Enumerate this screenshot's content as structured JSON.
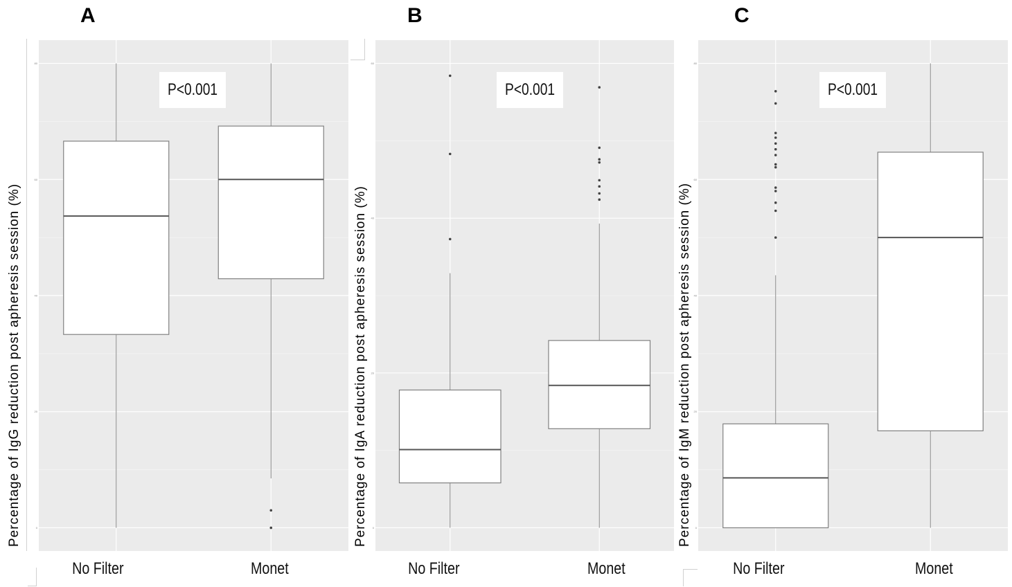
{
  "panels": [
    {
      "letter": "A",
      "ylabel": "Percentage of IgG reduction post apheresis session (%)",
      "pvalue": "P<0.001"
    },
    {
      "letter": "B",
      "ylabel": "Percentage of IgA reduction post apheresis session (%)",
      "pvalue": "P<0.001"
    },
    {
      "letter": "C",
      "ylabel": "Percentage of IgM reduction post apheresis session (%)",
      "pvalue": "P<0.001"
    }
  ],
  "chart_data": [
    {
      "type": "box",
      "title": "A",
      "ylabel": "Percentage of IgG reduction post apheresis session (%)",
      "categories": [
        "No Filter",
        "Monet"
      ],
      "ylim": [
        -4,
        84
      ],
      "y_ticks": [
        0,
        20,
        40,
        60,
        80
      ],
      "grid": true,
      "annotation": "P<0.001",
      "boxes": [
        {
          "category": "No Filter",
          "min": 0,
          "q1": 33.3,
          "median": 53.7,
          "q3": 66.6,
          "max": 80,
          "outliers": []
        },
        {
          "category": "Monet",
          "min": 8.5,
          "q1": 42.9,
          "median": 60.0,
          "q3": 69.2,
          "max": 80,
          "outliers": [
            3.0,
            0.0
          ]
        }
      ]
    },
    {
      "type": "box",
      "title": "B",
      "ylabel": "Percentage of IgA reduction post apheresis session (%)",
      "categories": [
        "No Filter",
        "Monet"
      ],
      "ylim": [
        -3,
        63
      ],
      "y_ticks": [
        0,
        20,
        40,
        60
      ],
      "grid": true,
      "annotation": "P<0.001",
      "boxes": [
        {
          "category": "No Filter",
          "min": 0,
          "q1": 5.8,
          "median": 10.1,
          "q3": 17.8,
          "max": 32.9,
          "outliers": [
            37.3,
            48.3,
            58.4
          ]
        },
        {
          "category": "Monet",
          "min": 0,
          "q1": 12.8,
          "median": 18.4,
          "q3": 24.2,
          "max": 39.3,
          "outliers": [
            42.4,
            43.2,
            44.1,
            44.9,
            47.2,
            47.6,
            49.1,
            56.9
          ]
        }
      ]
    },
    {
      "type": "box",
      "title": "C",
      "ylabel": "Percentage of IgM reduction post apheresis session (%)",
      "categories": [
        "No Filter",
        "Monet"
      ],
      "ylim": [
        -4,
        84
      ],
      "y_ticks": [
        0,
        20,
        40,
        60,
        80
      ],
      "grid": true,
      "annotation": "P<0.001",
      "boxes": [
        {
          "category": "No Filter",
          "min": 0,
          "q1": 0,
          "median": 8.6,
          "q3": 17.9,
          "max": 43.5,
          "outliers": [
            50.0,
            54.6,
            56.0,
            58.0,
            58.6,
            62.1,
            62.6,
            64.2,
            65.2,
            66.2,
            67.2,
            68.0,
            73.1,
            75.2
          ]
        },
        {
          "category": "Monet",
          "min": 0,
          "q1": 16.7,
          "median": 50.0,
          "q3": 64.7,
          "max": 80,
          "outliers": []
        }
      ]
    }
  ],
  "colors": {
    "panel_bg": "#ebebeb",
    "grid_major": "#ffffff",
    "grid_minor": "#f4f4f4",
    "box_fill": "#ffffff",
    "box_stroke": "#808080",
    "median": "#555555",
    "whisker": "#888888",
    "outlier": "#444444"
  }
}
